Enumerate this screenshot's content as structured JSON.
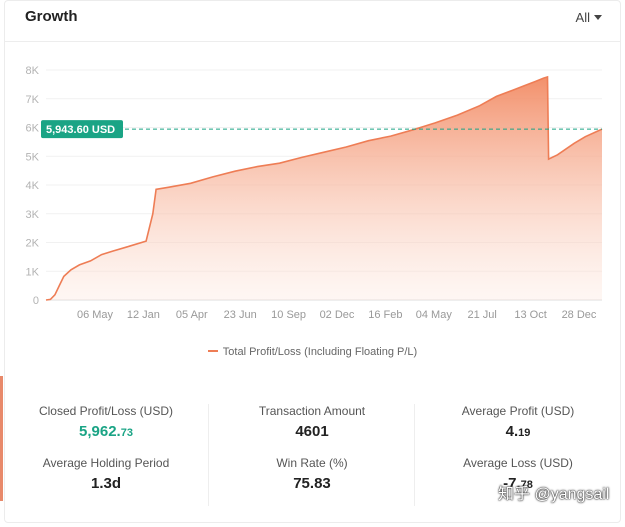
{
  "header": {
    "title": "Growth",
    "filter_label": "All"
  },
  "chart_data": {
    "type": "area",
    "series": [
      {
        "name": "Total Profit/Loss (Including Floating P/L)",
        "points": [
          [
            0.0,
            0
          ],
          [
            0.008,
            20
          ],
          [
            0.016,
            180
          ],
          [
            0.024,
            500
          ],
          [
            0.032,
            820
          ],
          [
            0.045,
            1050
          ],
          [
            0.06,
            1220
          ],
          [
            0.08,
            1360
          ],
          [
            0.1,
            1580
          ],
          [
            0.12,
            1700
          ],
          [
            0.15,
            1870
          ],
          [
            0.18,
            2050
          ],
          [
            0.192,
            3000
          ],
          [
            0.198,
            3850
          ],
          [
            0.22,
            3920
          ],
          [
            0.26,
            4060
          ],
          [
            0.3,
            4280
          ],
          [
            0.34,
            4480
          ],
          [
            0.38,
            4640
          ],
          [
            0.42,
            4760
          ],
          [
            0.46,
            4960
          ],
          [
            0.5,
            5140
          ],
          [
            0.54,
            5320
          ],
          [
            0.58,
            5540
          ],
          [
            0.62,
            5700
          ],
          [
            0.66,
            5920
          ],
          [
            0.7,
            6160
          ],
          [
            0.74,
            6430
          ],
          [
            0.78,
            6760
          ],
          [
            0.81,
            7080
          ],
          [
            0.84,
            7300
          ],
          [
            0.86,
            7450
          ],
          [
            0.88,
            7600
          ],
          [
            0.895,
            7720
          ],
          [
            0.902,
            7760
          ],
          [
            0.904,
            4900
          ],
          [
            0.92,
            5050
          ],
          [
            0.95,
            5450
          ],
          [
            0.97,
            5680
          ],
          [
            1.0,
            5943.6
          ]
        ]
      }
    ],
    "x_tick_labels": [
      "06 May",
      "12 Jan",
      "05 Apr",
      "23 Jun",
      "10 Sep",
      "02 Dec",
      "16 Feb",
      "04 May",
      "21 Jul",
      "13 Oct",
      "28 Dec"
    ],
    "y_tick_labels": [
      "0",
      "1K",
      "2K",
      "3K",
      "4K",
      "5K",
      "6K",
      "7K",
      "8K"
    ],
    "ylim": [
      0,
      8000
    ],
    "reference_line": {
      "value": 5943.6,
      "label": "5,943.60 USD"
    },
    "legend_position": "bottom",
    "colors": {
      "line": "#ee7d55",
      "area_top": "#f28a63",
      "reference": "#1aa485"
    }
  },
  "legend": {
    "label": "Total Profit/Loss (Including Floating P/L)"
  },
  "stats": {
    "closed_pl": {
      "label": "Closed Profit/Loss (USD)",
      "int": "5,962.",
      "dec": "73"
    },
    "transaction_amount": {
      "label": "Transaction Amount",
      "value": "4601"
    },
    "average_profit": {
      "label": "Average Profit (USD)",
      "int": "4.",
      "dec": "19"
    },
    "average_holding": {
      "label": "Average Holding Period",
      "value": "1.3d"
    },
    "win_rate": {
      "label": "Win Rate (%)",
      "value": "75.83"
    },
    "average_loss": {
      "label": "Average Loss (USD)",
      "int": "-7.",
      "dec": "78"
    }
  },
  "watermark": "知乎 @yangsail"
}
